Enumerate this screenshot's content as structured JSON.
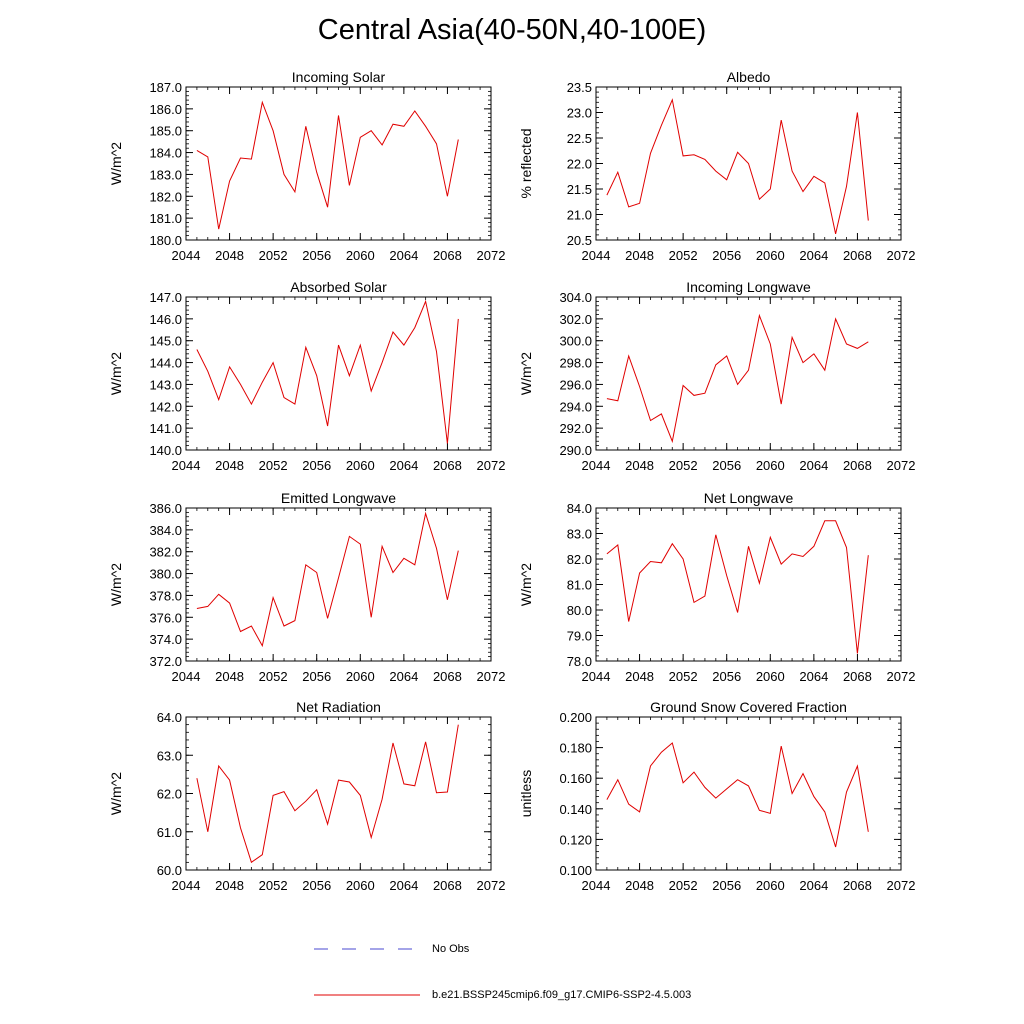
{
  "figure_title": "Central Asia(40-50N,40-100E)",
  "legend": {
    "items": [
      {
        "label": "No Obs",
        "style": "dashed",
        "color": "#4a4ad0"
      },
      {
        "label": "b.e21.BSSP245cmip6.f09_g17.CMIP6-SSP2-4.5.003",
        "style": "solid",
        "color": "#e00000"
      }
    ]
  },
  "chart_data": [
    {
      "type": "line",
      "title": "Incoming Solar",
      "ylabel": "W/m^2",
      "xlabel": "",
      "xlim": [
        2044,
        2072
      ],
      "xticks": [
        "2044",
        "2048",
        "2052",
        "2056",
        "2060",
        "2064",
        "2068",
        "2072"
      ],
      "ylim": [
        180.0,
        187.0
      ],
      "yticks": [
        "180.0",
        "181.0",
        "182.0",
        "183.0",
        "184.0",
        "185.0",
        "186.0",
        "187.0"
      ],
      "x": [
        2045,
        2046,
        2047,
        2048,
        2049,
        2050,
        2051,
        2052,
        2053,
        2054,
        2055,
        2056,
        2057,
        2058,
        2059,
        2060,
        2061,
        2062,
        2063,
        2064,
        2065,
        2066,
        2067,
        2068,
        2069
      ],
      "series": [
        {
          "name": "b.e21.BSSP245cmip6.f09_g17.CMIP6-SSP2-4.5.003",
          "color": "#e00000",
          "values": [
            184.1,
            183.8,
            180.5,
            182.7,
            183.75,
            183.7,
            186.3,
            185.0,
            183.0,
            182.2,
            185.2,
            183.1,
            181.5,
            185.7,
            182.5,
            184.7,
            185.0,
            184.35,
            185.3,
            185.2,
            185.9,
            185.2,
            184.4,
            182.0,
            184.6
          ]
        }
      ]
    },
    {
      "type": "line",
      "title": "Albedo",
      "ylabel": "% reflected",
      "xlabel": "",
      "xlim": [
        2044,
        2072
      ],
      "xticks": [
        "2044",
        "2048",
        "2052",
        "2056",
        "2060",
        "2064",
        "2068",
        "2072"
      ],
      "ylim": [
        20.5,
        23.5
      ],
      "yticks": [
        "20.5",
        "21.0",
        "21.5",
        "22.0",
        "22.5",
        "23.0",
        "23.5"
      ],
      "x": [
        2045,
        2046,
        2047,
        2048,
        2049,
        2050,
        2051,
        2052,
        2053,
        2054,
        2055,
        2056,
        2057,
        2058,
        2059,
        2060,
        2061,
        2062,
        2063,
        2064,
        2065,
        2066,
        2067,
        2068,
        2069
      ],
      "series": [
        {
          "name": "b.e21.BSSP245cmip6.f09_g17.CMIP6-SSP2-4.5.003",
          "color": "#e00000",
          "values": [
            21.38,
            21.83,
            21.15,
            21.22,
            22.2,
            22.75,
            23.25,
            22.15,
            22.17,
            22.08,
            21.85,
            21.68,
            22.22,
            22.0,
            21.3,
            21.5,
            22.85,
            21.85,
            21.45,
            21.75,
            21.62,
            20.62,
            21.55,
            23.0,
            20.88
          ]
        }
      ]
    },
    {
      "type": "line",
      "title": "Absorbed Solar",
      "ylabel": "W/m^2",
      "xlabel": "",
      "xlim": [
        2044,
        2072
      ],
      "xticks": [
        "2044",
        "2048",
        "2052",
        "2056",
        "2060",
        "2064",
        "2068",
        "2072"
      ],
      "ylim": [
        140.0,
        147.0
      ],
      "yticks": [
        "140.0",
        "141.0",
        "142.0",
        "143.0",
        "144.0",
        "145.0",
        "146.0",
        "147.0"
      ],
      "x": [
        2045,
        2046,
        2047,
        2048,
        2049,
        2050,
        2051,
        2052,
        2053,
        2054,
        2055,
        2056,
        2057,
        2058,
        2059,
        2060,
        2061,
        2062,
        2063,
        2064,
        2065,
        2066,
        2067,
        2068,
        2069
      ],
      "series": [
        {
          "name": "b.e21.BSSP245cmip6.f09_g17.CMIP6-SSP2-4.5.003",
          "color": "#e00000",
          "values": [
            144.6,
            143.6,
            142.3,
            143.8,
            143.0,
            142.1,
            143.1,
            144.0,
            142.4,
            142.1,
            144.7,
            143.4,
            141.1,
            144.8,
            143.4,
            144.8,
            142.7,
            144.0,
            145.4,
            144.8,
            145.6,
            146.8,
            144.5,
            140.3,
            146.0
          ]
        }
      ]
    },
    {
      "type": "line",
      "title": "Incoming Longwave",
      "ylabel": "W/m^2",
      "xlabel": "",
      "xlim": [
        2044,
        2072
      ],
      "xticks": [
        "2044",
        "2048",
        "2052",
        "2056",
        "2060",
        "2064",
        "2068",
        "2072"
      ],
      "ylim": [
        290.0,
        304.0
      ],
      "yticks": [
        "290.0",
        "292.0",
        "294.0",
        "296.0",
        "298.0",
        "300.0",
        "302.0",
        "304.0"
      ],
      "x": [
        2045,
        2046,
        2047,
        2048,
        2049,
        2050,
        2051,
        2052,
        2053,
        2054,
        2055,
        2056,
        2057,
        2058,
        2059,
        2060,
        2061,
        2062,
        2063,
        2064,
        2065,
        2066,
        2067,
        2068,
        2069
      ],
      "series": [
        {
          "name": "b.e21.BSSP245cmip6.f09_g17.CMIP6-SSP2-4.5.003",
          "color": "#e00000",
          "values": [
            294.7,
            294.5,
            298.6,
            295.8,
            292.7,
            293.3,
            290.8,
            295.9,
            295.0,
            295.2,
            297.8,
            298.6,
            296.0,
            297.3,
            302.3,
            299.7,
            294.2,
            300.3,
            298.0,
            298.8,
            297.3,
            302.0,
            299.7,
            299.3,
            299.9
          ]
        }
      ]
    },
    {
      "type": "line",
      "title": "Emitted Longwave",
      "ylabel": "W/m^2",
      "xlabel": "",
      "xlim": [
        2044,
        2072
      ],
      "xticks": [
        "2044",
        "2048",
        "2052",
        "2056",
        "2060",
        "2064",
        "2068",
        "2072"
      ],
      "ylim": [
        372.0,
        386.0
      ],
      "yticks": [
        "372.0",
        "374.0",
        "376.0",
        "378.0",
        "380.0",
        "382.0",
        "384.0",
        "386.0"
      ],
      "x": [
        2045,
        2046,
        2047,
        2048,
        2049,
        2050,
        2051,
        2052,
        2053,
        2054,
        2055,
        2056,
        2057,
        2058,
        2059,
        2060,
        2061,
        2062,
        2063,
        2064,
        2065,
        2066,
        2067,
        2068,
        2069
      ],
      "series": [
        {
          "name": "b.e21.BSSP245cmip6.f09_g17.CMIP6-SSP2-4.5.003",
          "color": "#e00000",
          "values": [
            376.8,
            377.0,
            378.1,
            377.3,
            374.7,
            375.2,
            373.4,
            377.8,
            375.2,
            375.7,
            380.8,
            380.1,
            375.9,
            379.6,
            383.4,
            382.7,
            376.0,
            382.5,
            380.1,
            381.4,
            380.8,
            385.5,
            382.3,
            377.6,
            382.1
          ]
        }
      ]
    },
    {
      "type": "line",
      "title": "Net Longwave",
      "ylabel": "W/m^2",
      "xlabel": "",
      "xlim": [
        2044,
        2072
      ],
      "xticks": [
        "2044",
        "2048",
        "2052",
        "2056",
        "2060",
        "2064",
        "2068",
        "2072"
      ],
      "ylim": [
        78.0,
        84.0
      ],
      "yticks": [
        "78.0",
        "79.0",
        "80.0",
        "81.0",
        "82.0",
        "83.0",
        "84.0"
      ],
      "x": [
        2045,
        2046,
        2047,
        2048,
        2049,
        2050,
        2051,
        2052,
        2053,
        2054,
        2055,
        2056,
        2057,
        2058,
        2059,
        2060,
        2061,
        2062,
        2063,
        2064,
        2065,
        2066,
        2067,
        2068,
        2069
      ],
      "series": [
        {
          "name": "b.e21.BSSP245cmip6.f09_g17.CMIP6-SSP2-4.5.003",
          "color": "#e00000",
          "values": [
            82.2,
            82.55,
            79.55,
            81.45,
            81.9,
            81.85,
            82.6,
            82.0,
            80.3,
            80.55,
            82.95,
            81.35,
            79.9,
            82.5,
            81.05,
            82.85,
            81.8,
            82.2,
            82.1,
            82.5,
            83.5,
            83.5,
            82.45,
            78.3,
            82.15
          ]
        }
      ]
    },
    {
      "type": "line",
      "title": "Net Radiation",
      "ylabel": "W/m^2",
      "xlabel": "",
      "xlim": [
        2044,
        2072
      ],
      "xticks": [
        "2044",
        "2048",
        "2052",
        "2056",
        "2060",
        "2064",
        "2068",
        "2072"
      ],
      "ylim": [
        60.0,
        64.0
      ],
      "yticks": [
        "60.0",
        "61.0",
        "62.0",
        "63.0",
        "64.0"
      ],
      "x": [
        2045,
        2046,
        2047,
        2048,
        2049,
        2050,
        2051,
        2052,
        2053,
        2054,
        2055,
        2056,
        2057,
        2058,
        2059,
        2060,
        2061,
        2062,
        2063,
        2064,
        2065,
        2066,
        2067,
        2068,
        2069
      ],
      "series": [
        {
          "name": "b.e21.BSSP245cmip6.f09_g17.CMIP6-SSP2-4.5.003",
          "color": "#e00000",
          "values": [
            62.4,
            61.0,
            62.72,
            62.35,
            61.1,
            60.2,
            60.4,
            61.95,
            62.05,
            61.55,
            61.8,
            62.1,
            61.2,
            62.35,
            62.3,
            61.95,
            60.85,
            61.85,
            63.32,
            62.25,
            62.2,
            63.35,
            62.02,
            62.04,
            63.8
          ]
        }
      ]
    },
    {
      "type": "line",
      "title": "Ground Snow Covered Fraction",
      "ylabel": "unitless",
      "xlabel": "",
      "xlim": [
        2044,
        2072
      ],
      "xticks": [
        "2044",
        "2048",
        "2052",
        "2056",
        "2060",
        "2064",
        "2068",
        "2072"
      ],
      "ylim": [
        0.1,
        0.2
      ],
      "yticks": [
        "0.100",
        "0.120",
        "0.140",
        "0.160",
        "0.180",
        "0.200"
      ],
      "x": [
        2045,
        2046,
        2047,
        2048,
        2049,
        2050,
        2051,
        2052,
        2053,
        2054,
        2055,
        2056,
        2057,
        2058,
        2059,
        2060,
        2061,
        2062,
        2063,
        2064,
        2065,
        2066,
        2067,
        2068,
        2069
      ],
      "series": [
        {
          "name": "b.e21.BSSP245cmip6.f09_g17.CMIP6-SSP2-4.5.003",
          "color": "#e00000",
          "values": [
            0.146,
            0.159,
            0.143,
            0.138,
            0.168,
            0.177,
            0.183,
            0.157,
            0.164,
            0.154,
            0.147,
            0.153,
            0.159,
            0.155,
            0.139,
            0.137,
            0.181,
            0.15,
            0.163,
            0.148,
            0.138,
            0.115,
            0.151,
            0.168,
            0.125
          ]
        }
      ]
    }
  ]
}
